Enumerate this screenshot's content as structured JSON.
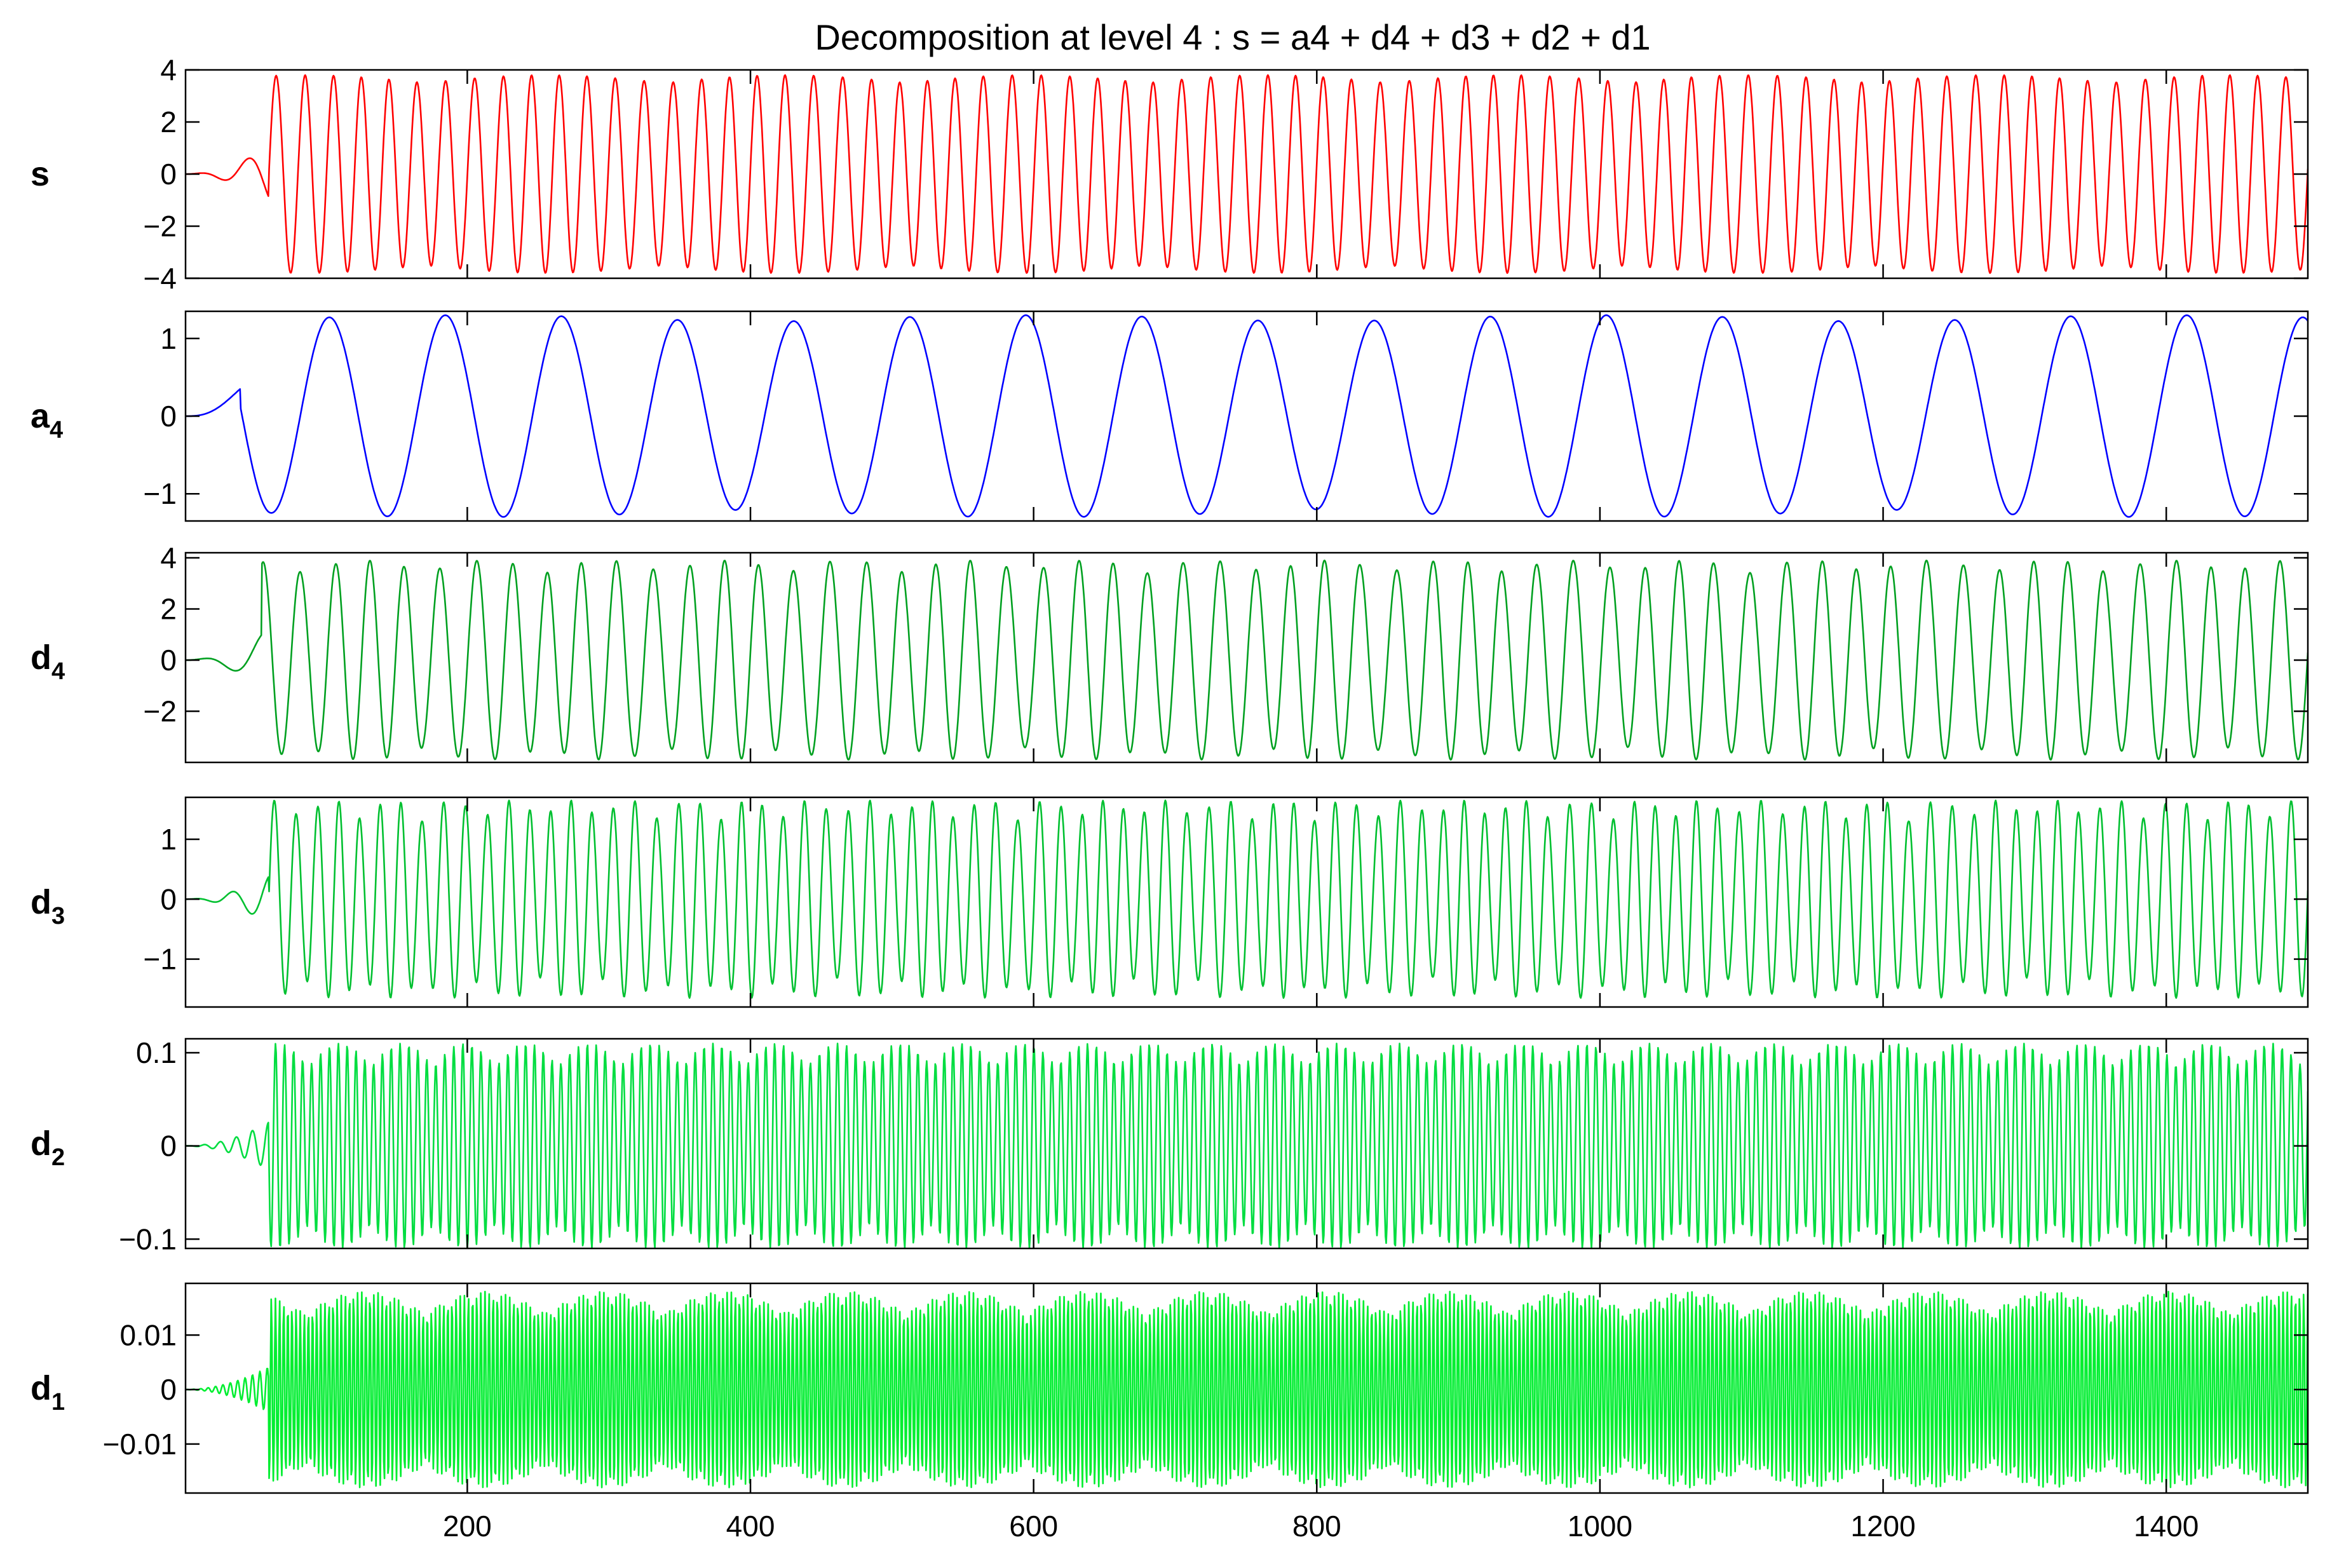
{
  "chart_data": {
    "type": "line",
    "title": "Decomposition at level 4 : s = a4 + d4 + d3 + d2 + d1",
    "xlim": [
      1,
      1500
    ],
    "xticks": [
      200,
      400,
      600,
      800,
      1000,
      1200,
      1400
    ],
    "xtick_labels": [
      "200",
      "400",
      "600",
      "800",
      "1000",
      "1200",
      "1400"
    ],
    "grid": false,
    "series": [
      {
        "name": "s",
        "label_main": "s",
        "label_sub": "",
        "color": "#ff0000",
        "ylim": [
          -4,
          4
        ],
        "yticks": [
          4,
          2,
          0,
          -2,
          -4
        ],
        "ytick_labels": [
          "4",
          "2",
          "0",
          "−2",
          "−4"
        ],
        "onset": 60,
        "amplitude": 3.5,
        "envelope_amplitude": 3.8,
        "period": 20,
        "beat_period": 170,
        "phase_jitter": 0.18
      },
      {
        "name": "a4",
        "label_main": "a",
        "label_sub": "4",
        "color": "#0000ff",
        "ylim": [
          -1.35,
          1.35
        ],
        "yticks": [
          1,
          0,
          -1
        ],
        "ytick_labels": [
          "1",
          "0",
          "−1"
        ],
        "onset": 40,
        "amplitude": 1.2,
        "envelope_amplitude": 1.3,
        "period": 82,
        "beat_period": 400,
        "phase_jitter": 0.0
      },
      {
        "name": "d4",
        "label_main": "d",
        "label_sub": "4",
        "color": "#00a020",
        "ylim": [
          -4,
          4.2
        ],
        "yticks": [
          4,
          2,
          0,
          -2
        ],
        "ytick_labels": [
          "4",
          "2",
          "0",
          "−2"
        ],
        "onset": 55,
        "amplitude": 3.4,
        "envelope_amplitude": 3.9,
        "period": 25,
        "beat_period": 85,
        "phase_jitter": 0.25
      },
      {
        "name": "d3",
        "label_main": "d",
        "label_sub": "3",
        "color": "#00c030",
        "ylim": [
          -1.8,
          1.7
        ],
        "yticks": [
          1,
          0,
          -1
        ],
        "ytick_labels": [
          "1",
          "0",
          "−1"
        ],
        "onset": 60,
        "amplitude": 1.3,
        "envelope_amplitude": 1.65,
        "period": 15,
        "beat_period": 42,
        "phase_jitter": 0.3
      },
      {
        "name": "d2",
        "label_main": "d",
        "label_sub": "2",
        "color": "#00dd40",
        "ylim": [
          -0.11,
          0.115
        ],
        "yticks": [
          0.1,
          0,
          -0.1
        ],
        "ytick_labels": [
          "0.1",
          "0",
          "−0.1"
        ],
        "onset": 60,
        "amplitude": 0.085,
        "envelope_amplitude": 0.11,
        "period": 6.3,
        "beat_period": 44,
        "phase_jitter": 0.3
      },
      {
        "name": "d1",
        "label_main": "d",
        "label_sub": "1",
        "color": "#00ee30",
        "ylim": [
          -0.019,
          0.0195
        ],
        "yticks": [
          0.01,
          0,
          -0.01
        ],
        "ytick_labels": [
          "0.01",
          "0",
          "−0.01"
        ],
        "onset": 60,
        "amplitude": 0.014,
        "envelope_amplitude": 0.018,
        "period": 2.9,
        "beat_period": 85,
        "phase_jitter": 0.2
      }
    ]
  }
}
